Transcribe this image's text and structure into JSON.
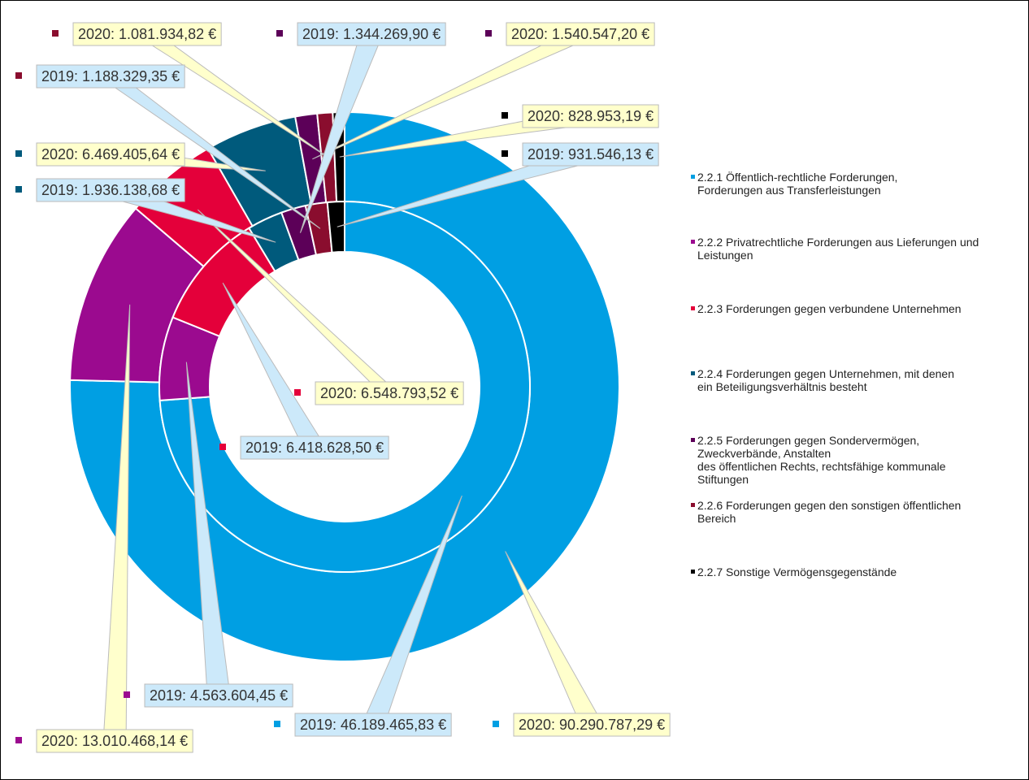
{
  "chart_data": {
    "type": "donut",
    "categories": [
      "2.2.1 Öffentlich-rechtliche Forderungen,\nForderungen aus Transferleistungen",
      "2.2.2 Privatrechtliche Forderungen aus Lieferungen und\nLeistungen",
      "2.2.3 Forderungen gegen verbundene Unternehmen",
      "2.2.4 Forderungen gegen Unternehmen, mit denen\nein Beteiligungsverhältnis besteht",
      "2.2.5 Forderungen gegen Sondervermögen,\nZweckverbände, Anstalten\ndes öffentlichen Rechts, rechtsfähige kommunale\nStiftungen",
      "2.2.6 Forderungen gegen den sonstigen öffentlichen\nBereich",
      "2.2.7 Sonstige Vermögensgegenstände"
    ],
    "colors": [
      "#009fe3",
      "#9b0a8f",
      "#e4003a",
      "#005a7c",
      "#5c0058",
      "#8a0d2e",
      "#000000"
    ],
    "series": [
      {
        "values": [
          90290787.29,
          13010468.14,
          6548793.52,
          6469405.64,
          1540547.2,
          1081934.82,
          828953.19
        ],
        "value_labels": [
          "2020: 90.290.787,29 €",
          "2020: 13.010.468,14 €",
          "2020: 6.548.793,52 €",
          "2020: 6.469.405,64 €",
          "2020: 1.540.547,20 €",
          "2020: 1.081.934,82 €",
          "2020: 828.953,19 €"
        ]
      },
      {
        "values": [
          46189465.83,
          4563604.45,
          6418628.5,
          1936138.68,
          1344269.9,
          1188329.35,
          931546.13
        ],
        "value_labels": [
          "2019: 46.189.465,83 €",
          "2019: 4.563.604,45 €",
          "2019: 6.418.628,50 €",
          "2019: 1.936.138,68 €",
          "2019: 1.344.269,90 €",
          "2019: 1.188.329,35 €",
          "2019: 931.546,13 €"
        ]
      }
    ],
    "legend": "right"
  }
}
